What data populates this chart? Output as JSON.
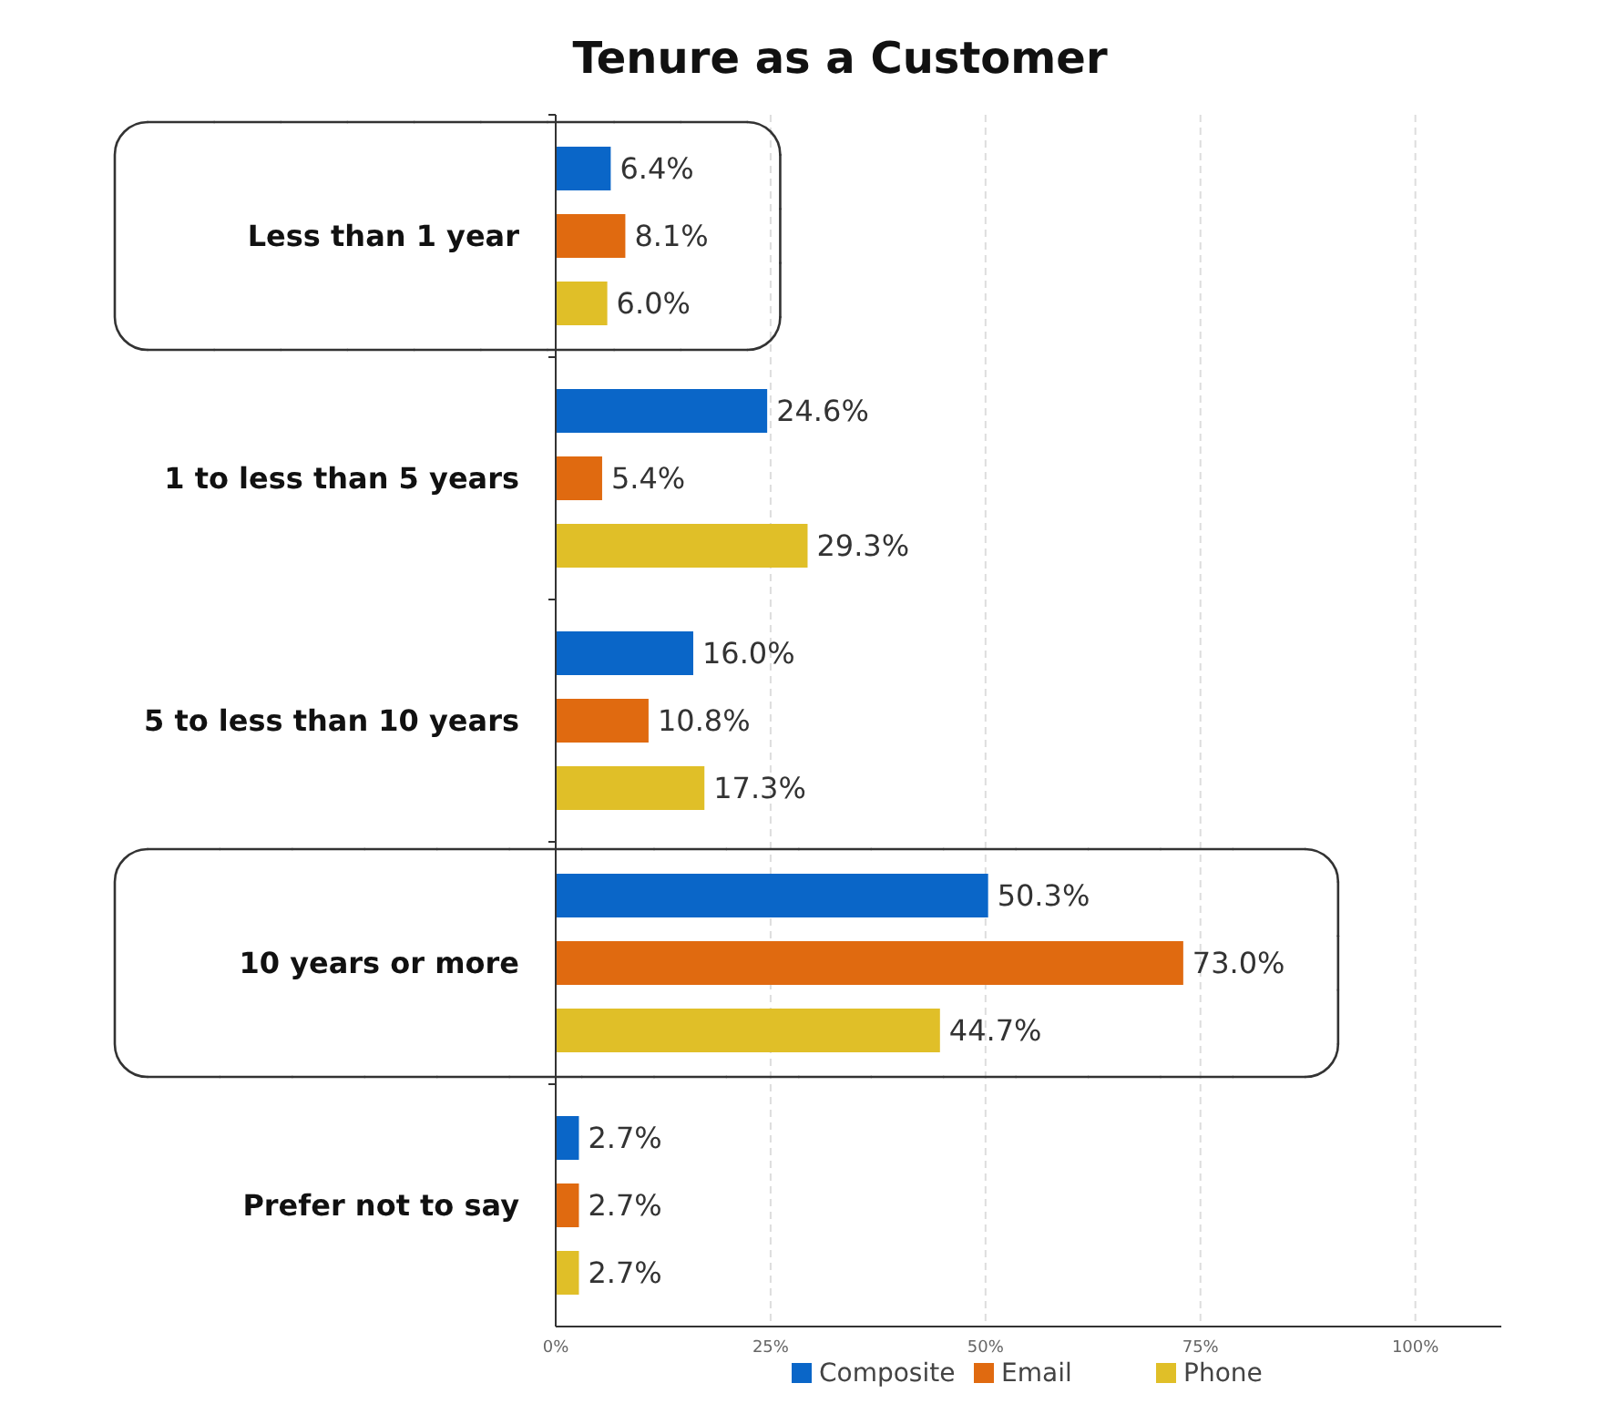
{
  "chart_data": {
    "type": "bar",
    "orientation": "horizontal",
    "title": "Tenure as a Customer",
    "categories": [
      "Less than 1 year",
      "1 to less than 5 years",
      "5 to less than 10 years",
      "10 years or more",
      "Prefer not to say"
    ],
    "series": [
      {
        "name": "Composite",
        "color": "#0a66c8",
        "values": [
          6.4,
          24.6,
          16.0,
          50.3,
          2.7
        ],
        "value_labels": [
          "6.4%",
          "24.6%",
          "16.0%",
          "50.3%",
          "2.7%"
        ]
      },
      {
        "name": "Email",
        "color": "#e06a10",
        "values": [
          8.1,
          5.4,
          10.8,
          73.0,
          2.7
        ],
        "value_labels": [
          "8.1%",
          "5.4%",
          "10.8%",
          "73.0%",
          "2.7%"
        ]
      },
      {
        "name": "Phone",
        "color": "#e0bf28",
        "values": [
          6.0,
          29.3,
          17.3,
          44.7,
          2.7
        ],
        "value_labels": [
          "6.0%",
          "29.3%",
          "17.3%",
          "44.7%",
          "2.7%"
        ]
      }
    ],
    "xlim": [
      0,
      110
    ],
    "xticks": [
      {
        "value": 0,
        "label": "0%"
      },
      {
        "value": 25,
        "label": "25%"
      },
      {
        "value": 50,
        "label": "50%"
      },
      {
        "value": 75,
        "label": "75%"
      },
      {
        "value": 100,
        "label": "100%"
      }
    ],
    "grid": "x",
    "legend": "bottom"
  }
}
